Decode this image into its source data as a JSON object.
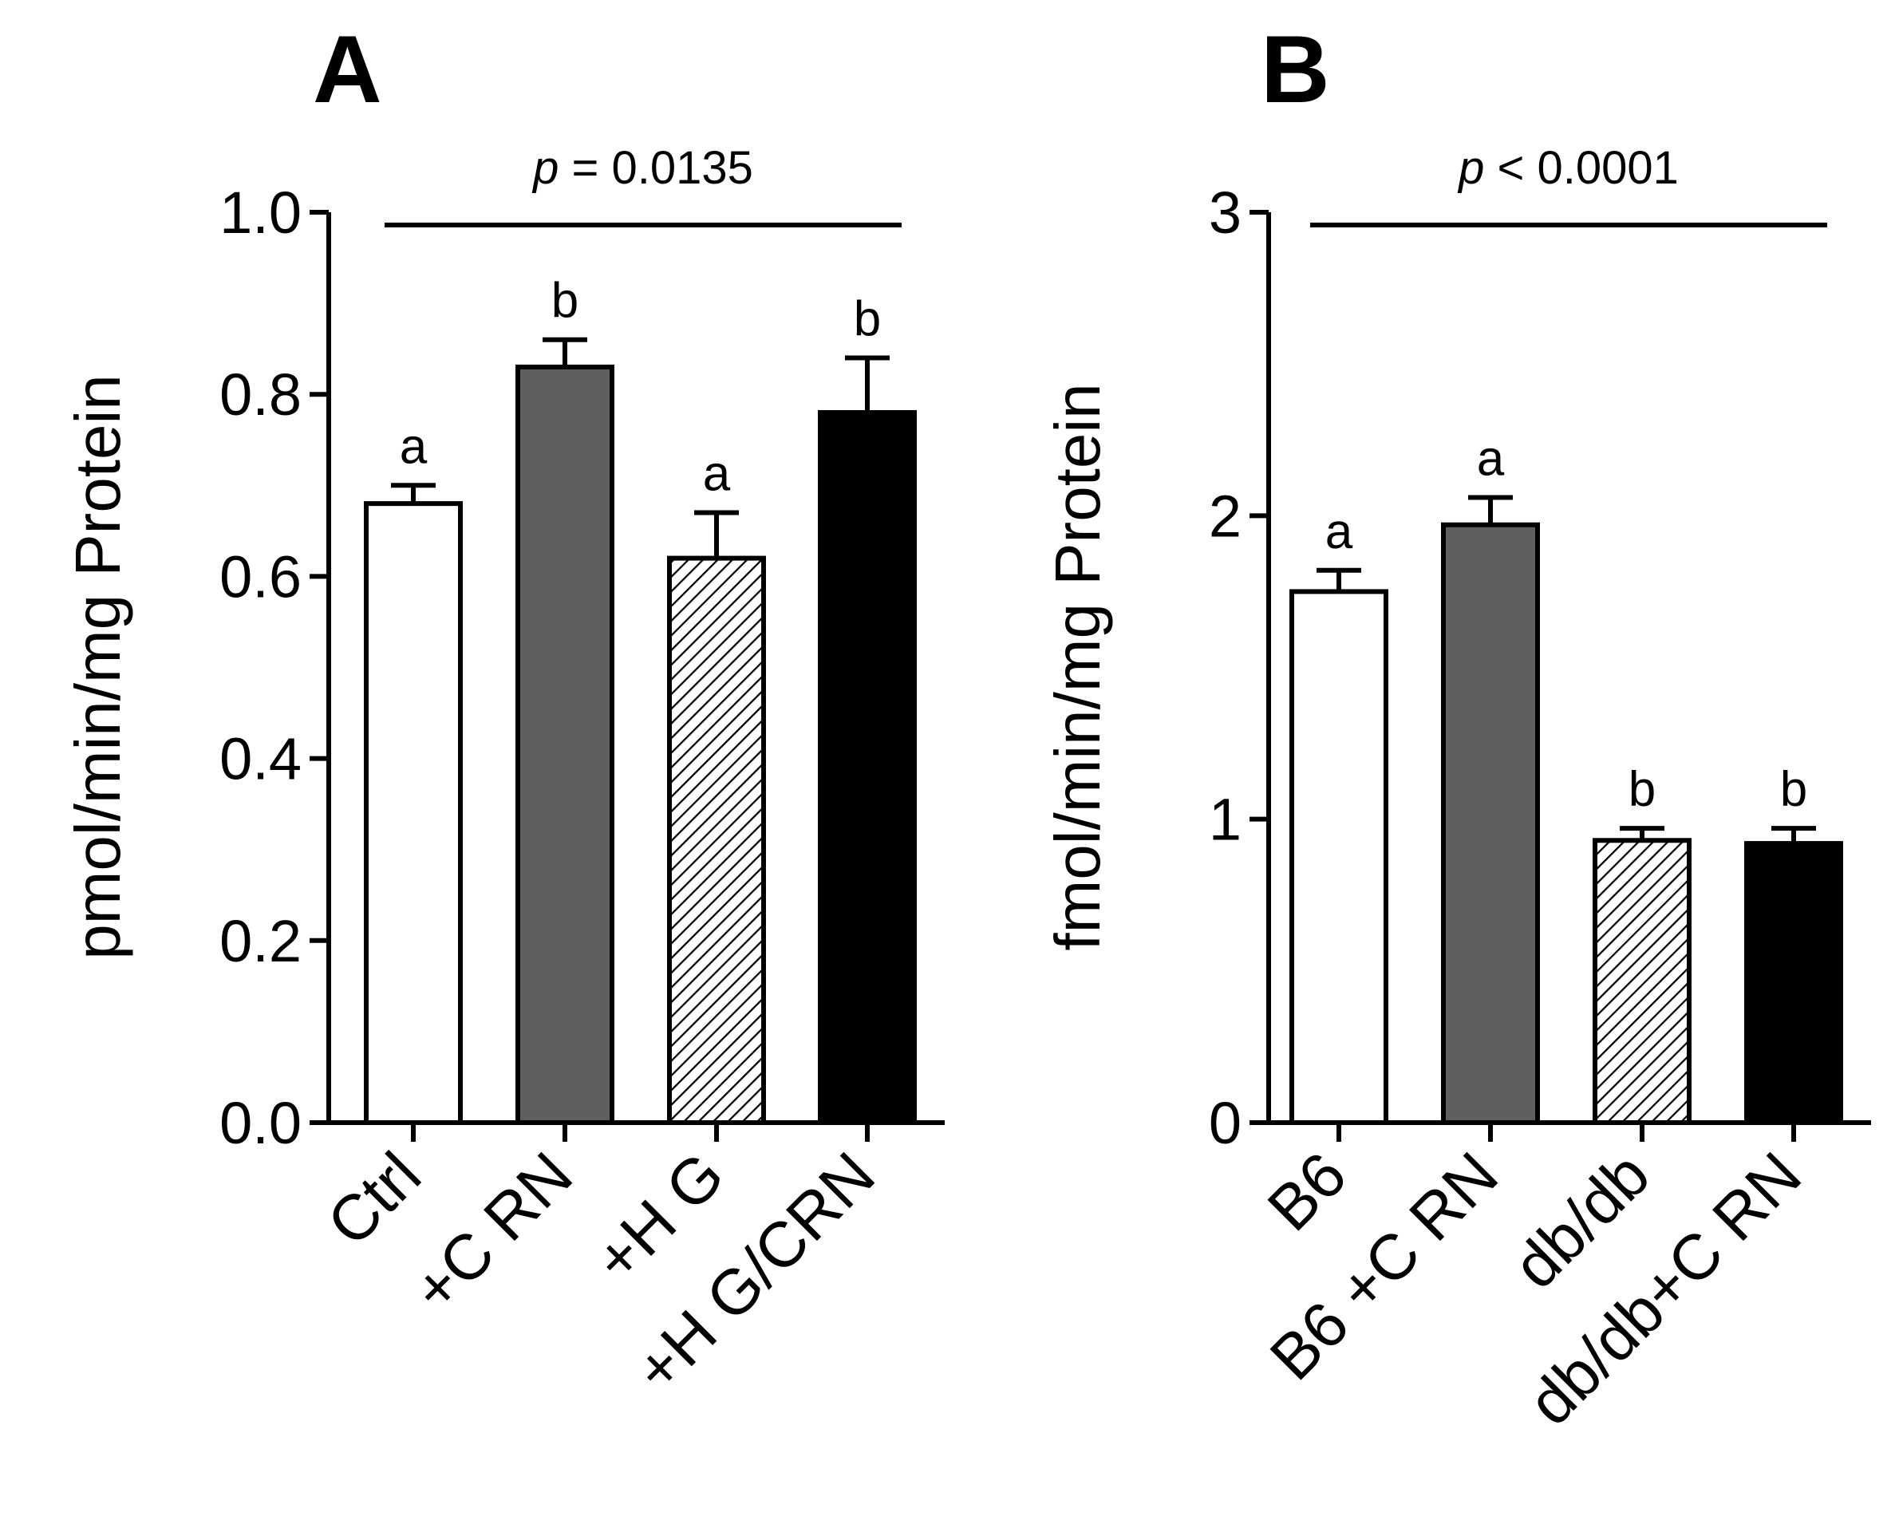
{
  "colors": {
    "axis": "#000000",
    "white_bar": "#ffffff",
    "gray_bar": "#5f5f5f",
    "hatched_bar": "#ffffff",
    "black_bar": "#000000"
  },
  "chart_data": [
    {
      "panel": "A",
      "type": "bar",
      "title": "A",
      "ylabel": "pmol/min/mg Protein",
      "xlabel": "",
      "ylim": [
        0,
        1.0
      ],
      "yticks": [
        "0.0",
        "0.2",
        "0.4",
        "0.6",
        "0.8",
        "1.0"
      ],
      "ytick_values": [
        0,
        0.2,
        0.4,
        0.6,
        0.8,
        1.0
      ],
      "categories": [
        "Ctrl",
        "+C RN",
        "+H G",
        "+H G/CRN"
      ],
      "values": [
        0.68,
        0.83,
        0.62,
        0.78
      ],
      "errors": [
        0.02,
        0.03,
        0.05,
        0.06
      ],
      "fills": [
        "white",
        "gray",
        "hatched",
        "black"
      ],
      "significance_letters": [
        "a",
        "b",
        "a",
        "b"
      ],
      "p_label": "p",
      "p_text": " = 0.0135"
    },
    {
      "panel": "B",
      "type": "bar",
      "title": "B",
      "ylabel": "fmol/min/mg  Protein",
      "xlabel": "",
      "ylim": [
        0,
        3
      ],
      "yticks": [
        "0",
        "1",
        "2",
        "3"
      ],
      "ytick_values": [
        0,
        1,
        2,
        3
      ],
      "categories": [
        "B6",
        "B6 +C RN",
        "db/db",
        "db/db+C RN"
      ],
      "values": [
        1.75,
        1.97,
        0.93,
        0.92
      ],
      "errors": [
        0.07,
        0.09,
        0.04,
        0.05
      ],
      "fills": [
        "white",
        "gray",
        "hatched",
        "black"
      ],
      "significance_letters": [
        "a",
        "a",
        "b",
        "b"
      ],
      "p_label": "p",
      "p_text": " < 0.0001"
    }
  ]
}
